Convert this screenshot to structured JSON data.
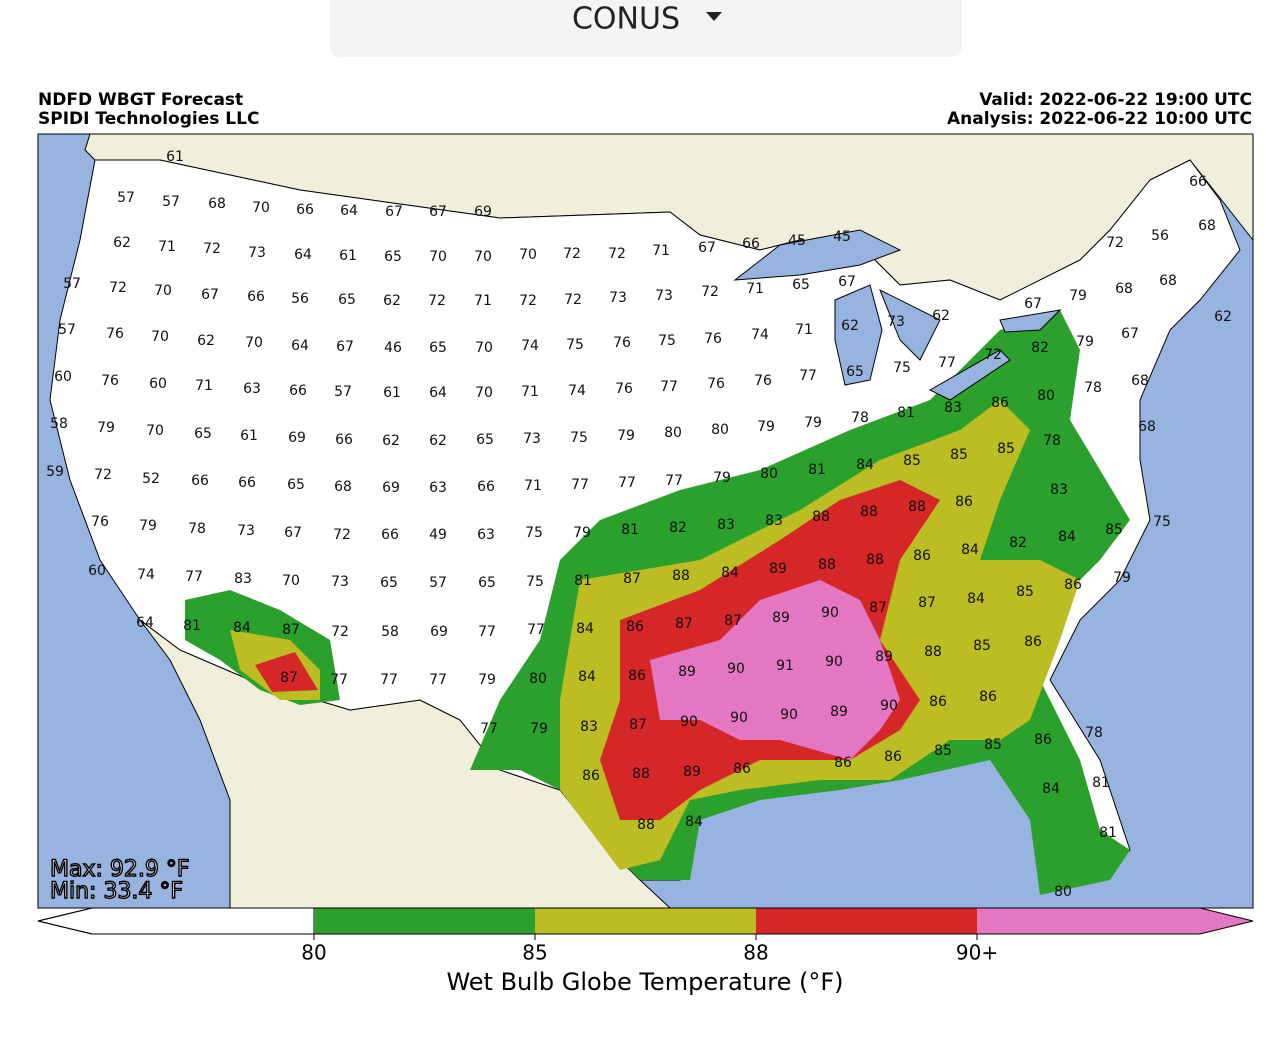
{
  "dropdown": {
    "label": "CONUS"
  },
  "header": {
    "title": "NDFD WBGT Forecast",
    "org": "SPIDI Technologies LLC",
    "valid": "Valid: 2022-06-22 19:00 UTC",
    "analysis": "Analysis: 2022-06-22 10:00 UTC"
  },
  "stats": {
    "max": "Max: 92.9 °F",
    "min": "Min: 33.4 °F"
  },
  "colorbar": {
    "ticks": [
      "80",
      "85",
      "88",
      "90+"
    ],
    "label": "Wet Bulb Globe Temperature (°F)"
  },
  "stations": [
    [
      61,
      57,
      57,
      68,
      70,
      66,
      64,
      67,
      67,
      69
    ],
    [
      62,
      71,
      72,
      73,
      64,
      61,
      65,
      70,
      70,
      70,
      72,
      72,
      71,
      67,
      66,
      45,
      45,
      72,
      56,
      66,
      68
    ],
    [
      57,
      72,
      70,
      67,
      66,
      56,
      65,
      62,
      72,
      71,
      72,
      72,
      73,
      73,
      72,
      71,
      65,
      67,
      79,
      68,
      68
    ],
    [
      57,
      76,
      70,
      62,
      70,
      64,
      67,
      46,
      65,
      70,
      74,
      75,
      76,
      75,
      76,
      74,
      71,
      62,
      73,
      62,
      67,
      62,
      67,
      82,
      79
    ],
    [
      60,
      76,
      60,
      71,
      63,
      66,
      57,
      61,
      64,
      70,
      71,
      74,
      76,
      77,
      76,
      76,
      77,
      65,
      75,
      77,
      72,
      80,
      78,
      68
    ],
    [
      58,
      79,
      70,
      65,
      61,
      69,
      66,
      62,
      62,
      65,
      73,
      75,
      79,
      80,
      80,
      79,
      79,
      78,
      81,
      83,
      86,
      85,
      78,
      68
    ],
    [
      59,
      72,
      52,
      66,
      66,
      65,
      68,
      69,
      63,
      66,
      71,
      77,
      77,
      77,
      79,
      80,
      81,
      84,
      85,
      85,
      83
    ],
    [
      76,
      79,
      78,
      73,
      67,
      72,
      66,
      49,
      63,
      75,
      79,
      81,
      82,
      83,
      83,
      88,
      88,
      88,
      86,
      84,
      85,
      75
    ],
    [
      60,
      74,
      77,
      83,
      70,
      73,
      65,
      57,
      65,
      75,
      81,
      87,
      88,
      84,
      89,
      88,
      88,
      86,
      84,
      82,
      86,
      79,
      85
    ],
    [
      64,
      81,
      84,
      87,
      72,
      58,
      69,
      77,
      77,
      84,
      86,
      87,
      87,
      89,
      90,
      87,
      87,
      84,
      86
    ],
    [
      87,
      77,
      77,
      77,
      79,
      80,
      84,
      86,
      89,
      90,
      91,
      90,
      89,
      88,
      85
    ],
    [
      77,
      79,
      83,
      87,
      90,
      90,
      90,
      89,
      90,
      86,
      86
    ],
    [
      86,
      88,
      89,
      86,
      86,
      86,
      85,
      85,
      86,
      78
    ],
    [
      88,
      84,
      84,
      81,
      81,
      80
    ]
  ]
}
